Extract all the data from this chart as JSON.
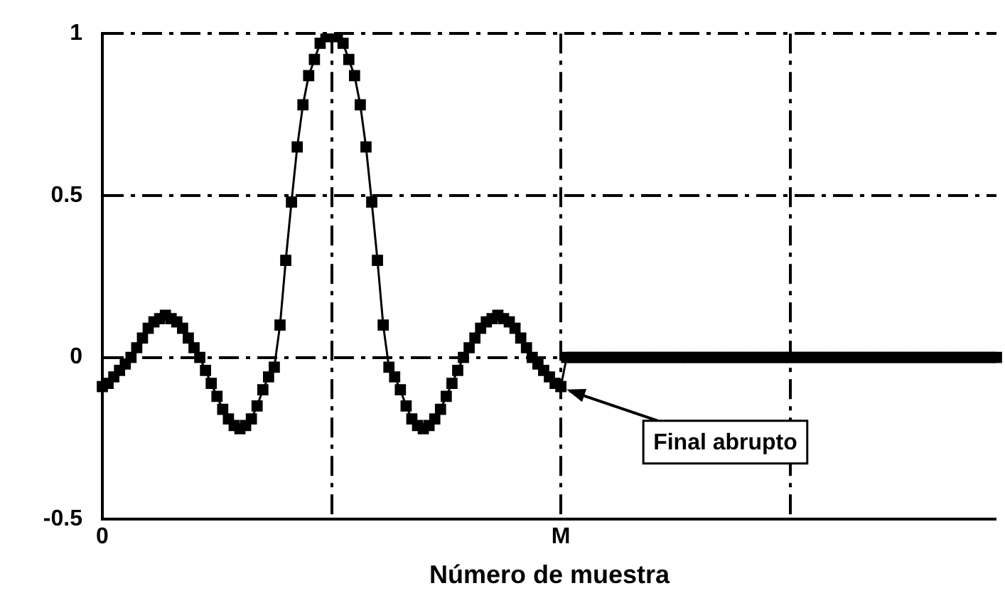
{
  "chart_data": {
    "type": "line",
    "xlabel": "Número de muestra",
    "categories": [
      "0",
      null,
      null,
      null,
      null,
      null,
      null,
      null,
      null,
      null,
      null,
      null,
      null,
      null,
      null,
      null,
      null,
      null,
      null,
      null,
      null,
      null,
      null,
      null,
      null,
      null,
      null,
      null,
      null,
      null,
      null,
      null,
      null,
      null,
      null,
      null,
      null,
      null,
      null,
      null,
      null,
      null,
      null,
      null,
      null,
      null,
      null,
      null,
      null,
      null,
      null,
      null,
      null,
      null,
      null,
      null,
      null,
      null,
      null,
      null,
      null,
      null,
      null,
      null,
      null,
      null,
      null,
      null,
      null,
      null,
      null,
      null,
      null,
      null,
      null,
      null,
      null,
      null,
      null,
      null,
      "M",
      null,
      null,
      null,
      null,
      null,
      null,
      null,
      null,
      null,
      null,
      null,
      null,
      null,
      null,
      null,
      null,
      null,
      null,
      null,
      null,
      null,
      null,
      null,
      null,
      null,
      null,
      null,
      null,
      null,
      null,
      null,
      null,
      null,
      null,
      null,
      null,
      null,
      null,
      null,
      null,
      null,
      null,
      null,
      null,
      null,
      null,
      null,
      null,
      null,
      null,
      null,
      null,
      null,
      null,
      null,
      null,
      null,
      null,
      null,
      null,
      null,
      null,
      null,
      null,
      null,
      null,
      null,
      null,
      null,
      null,
      null,
      null,
      null,
      null,
      null,
      null
    ],
    "series": [
      {
        "color": "#000000",
        "values": [
          -0.09,
          -0.08,
          -0.06,
          -0.04,
          -0.02,
          0,
          0.03,
          0.06,
          0.09,
          0.11,
          0.12,
          0.13,
          0.12,
          0.11,
          0.09,
          0.06,
          0.03,
          0,
          -0.04,
          -0.08,
          -0.12,
          -0.16,
          -0.19,
          -0.21,
          -0.22,
          -0.21,
          -0.19,
          -0.15,
          -0.1,
          -0.06,
          -0.03,
          0.1,
          0.3,
          0.48,
          0.65,
          0.78,
          0.87,
          0.92,
          0.97,
          0.99,
          1,
          0.99,
          0.97,
          0.92,
          0.87,
          0.78,
          0.65,
          0.48,
          0.3,
          0.1,
          -0.03,
          -0.06,
          -0.1,
          -0.15,
          -0.19,
          -0.21,
          -0.22,
          -0.21,
          -0.19,
          -0.16,
          -0.12,
          -0.08,
          -0.04,
          0,
          0.03,
          0.06,
          0.09,
          0.11,
          0.12,
          0.13,
          0.12,
          0.11,
          0.09,
          0.06,
          0.03,
          0,
          -0.02,
          -0.04,
          -0.06,
          -0.08,
          -0.09,
          0,
          0,
          0,
          0,
          0,
          0,
          0,
          0,
          0,
          0,
          0,
          0,
          0,
          0,
          0,
          0,
          0,
          0,
          0,
          0,
          0,
          0,
          0,
          0,
          0,
          0,
          0,
          0,
          0,
          0,
          0,
          0,
          0,
          0,
          0,
          0,
          0,
          0,
          0,
          0,
          0,
          0,
          0,
          0,
          0,
          0,
          0,
          0,
          0,
          0,
          0,
          0,
          0,
          0,
          0,
          0,
          0,
          0,
          0,
          0,
          0,
          0,
          0,
          0,
          0,
          0,
          0,
          0,
          0,
          0,
          0,
          0,
          0,
          0,
          0,
          0
        ]
      }
    ],
    "ylim": [
      -0.5,
      1
    ],
    "yticks": [
      -0.5,
      0,
      0.5,
      1
    ],
    "grid": true,
    "legend": false,
    "marker": "square",
    "line_style": "solid",
    "annotations": [
      {
        "text": "Final abrupto",
        "x": "M",
        "y": -0.09
      }
    ]
  }
}
